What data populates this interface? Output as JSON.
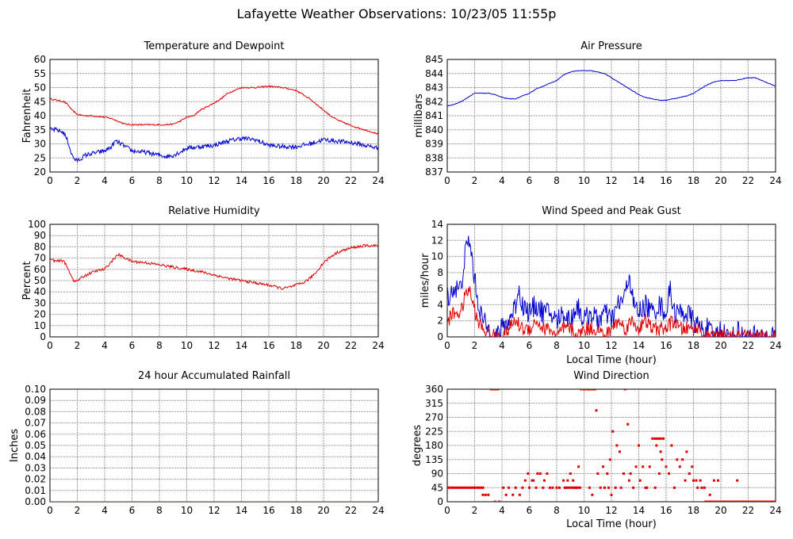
{
  "page": {
    "title": "Lafayette Weather Observations: 10/23/05 11:55p"
  },
  "colors": {
    "red": "#e00000",
    "blue": "#0000d0",
    "grid": "#808080"
  },
  "chart_data": [
    {
      "id": "temp",
      "type": "line",
      "title": "Temperature and Dewpoint",
      "xlabel": "",
      "ylabel": "Fahrenheit",
      "xlim": [
        0,
        24
      ],
      "ylim": [
        20,
        60
      ],
      "xticks": [
        0,
        2,
        4,
        6,
        8,
        10,
        12,
        14,
        16,
        18,
        20,
        22,
        24
      ],
      "yticks": [
        "20",
        "25",
        "30",
        "35",
        "40",
        "45",
        "50",
        "55",
        "60"
      ],
      "grid": true,
      "series": [
        {
          "color": "#e00000",
          "noise": 0.25,
          "x": [
            0,
            0.5,
            1,
            1.3,
            1.6,
            2,
            2.5,
            3,
            4,
            4.5,
            5,
            5.5,
            6,
            7,
            8,
            8.5,
            9,
            9.5,
            10,
            10.5,
            11,
            12,
            12.5,
            13,
            14,
            15,
            16,
            17,
            18,
            19,
            20,
            20.5,
            21,
            21.5,
            22,
            23,
            24
          ],
          "y": [
            46,
            45.5,
            45,
            44,
            42,
            40.5,
            40,
            40,
            39.5,
            39,
            38,
            37,
            36.8,
            36.8,
            36.8,
            36.8,
            37,
            38,
            39.5,
            40,
            42,
            44.5,
            46,
            48,
            50,
            50,
            50.5,
            50,
            49,
            46,
            42,
            40,
            38.5,
            37.5,
            36.5,
            35,
            33.5
          ]
        },
        {
          "color": "#0000d0",
          "noise": 0.8,
          "x": [
            0,
            0.5,
            1,
            1.3,
            1.6,
            1.9,
            2.2,
            2.6,
            3,
            3.5,
            4,
            4.5,
            4.8,
            5.2,
            6,
            7,
            8,
            8.5,
            9,
            9.5,
            10,
            11,
            12,
            13,
            14,
            15,
            16,
            17,
            18,
            19,
            20,
            21,
            22,
            23,
            24
          ],
          "y": [
            35,
            35,
            34,
            31,
            26,
            24,
            24.5,
            26,
            26.5,
            27,
            27.5,
            29,
            31,
            30,
            27.5,
            27,
            26,
            25.5,
            26,
            27,
            28.5,
            29,
            29.5,
            31,
            32,
            31.5,
            29.5,
            29,
            29,
            30,
            31.5,
            31,
            30.5,
            29.5,
            28.5
          ]
        }
      ]
    },
    {
      "id": "pressure",
      "type": "line",
      "title": "Air Pressure",
      "xlabel": "",
      "ylabel": "millibars",
      "xlim": [
        0,
        24
      ],
      "ylim": [
        837,
        845
      ],
      "xticks": [
        0,
        2,
        4,
        6,
        8,
        10,
        12,
        14,
        16,
        18,
        20,
        22,
        24
      ],
      "yticks": [
        "837",
        "838",
        "839",
        "840",
        "841",
        "842",
        "843",
        "844",
        "845"
      ],
      "grid": true,
      "series": [
        {
          "color": "#0000d0",
          "noise": 0.02,
          "x": [
            0,
            0.5,
            1,
            1.5,
            2,
            2.5,
            3,
            3.5,
            4,
            4.5,
            5,
            5.5,
            6,
            6.5,
            7,
            7.5,
            8,
            8.5,
            9,
            9.5,
            10,
            10.5,
            11,
            11.5,
            12,
            12.5,
            13,
            13.5,
            14,
            14.5,
            15,
            15.5,
            16,
            16.5,
            17,
            17.5,
            18,
            18.5,
            19,
            19.5,
            20,
            20.5,
            21,
            21.5,
            22,
            22.5,
            23,
            23.5,
            24
          ],
          "y": [
            841.7,
            841.8,
            842,
            842.3,
            842.6,
            842.6,
            842.6,
            842.5,
            842.3,
            842.2,
            842.2,
            842.4,
            842.6,
            842.9,
            843.1,
            843.3,
            843.5,
            843.9,
            844.1,
            844.2,
            844.2,
            844.2,
            844.1,
            844,
            843.7,
            843.4,
            843.1,
            842.8,
            842.5,
            842.3,
            842.2,
            842.1,
            842.1,
            842.2,
            842.3,
            842.4,
            842.6,
            842.9,
            843.2,
            843.4,
            843.5,
            843.5,
            843.5,
            843.6,
            843.7,
            843.7,
            843.5,
            843.3,
            843.1
          ]
        }
      ]
    },
    {
      "id": "humidity",
      "type": "line",
      "title": "Relative Humidity",
      "xlabel": "",
      "ylabel": "Percent",
      "xlim": [
        0,
        24
      ],
      "ylim": [
        0,
        100
      ],
      "xticks": [
        0,
        2,
        4,
        6,
        8,
        10,
        12,
        14,
        16,
        18,
        20,
        22,
        24
      ],
      "yticks": [
        "0",
        "10",
        "20",
        "30",
        "40",
        "50",
        "60",
        "70",
        "80",
        "90",
        "100"
      ],
      "grid": true,
      "series": [
        {
          "color": "#e00000",
          "noise": 1.2,
          "x": [
            0,
            0.5,
            1,
            1.2,
            1.5,
            1.8,
            2,
            2.5,
            3,
            3.5,
            4,
            4.5,
            4.8,
            5,
            5.5,
            6,
            7,
            8,
            9,
            10,
            11,
            12,
            13,
            14,
            15,
            16,
            17,
            17.5,
            18,
            18.5,
            19,
            19.5,
            20,
            20.5,
            21,
            22,
            23,
            23.5,
            24
          ],
          "y": [
            69,
            67,
            68,
            63,
            56,
            49,
            50,
            54,
            57,
            59,
            60,
            67,
            71,
            73,
            70,
            67,
            66,
            64,
            62,
            60,
            58,
            55,
            52,
            50,
            48,
            46,
            43,
            44,
            46,
            48,
            52,
            58,
            66,
            71,
            75,
            79,
            81,
            81,
            81
          ]
        }
      ]
    },
    {
      "id": "wind",
      "type": "line",
      "title": "Wind Speed and Peak Gust",
      "xlabel": "Local Time (hour)",
      "ylabel": "miles/hour",
      "xlim": [
        0,
        24
      ],
      "ylim": [
        0,
        14
      ],
      "xticks": [
        0,
        2,
        4,
        6,
        8,
        10,
        12,
        14,
        16,
        18,
        20,
        22,
        24
      ],
      "yticks": [
        "0",
        "2",
        "4",
        "6",
        "8",
        "10",
        "12",
        "14"
      ],
      "grid": true,
      "series": [
        {
          "color": "#0000d0",
          "noise": 1.4,
          "x": [
            0,
            0.5,
            1,
            1.2,
            1.4,
            1.6,
            1.8,
            2,
            2.3,
            2.6,
            3,
            3.5,
            4,
            4.5,
            5,
            5.2,
            5.5,
            6,
            6.5,
            7,
            7.5,
            8,
            8.5,
            9,
            9.5,
            10,
            10.5,
            11,
            11.5,
            12,
            12.5,
            13,
            13.3,
            13.6,
            14,
            14.5,
            15,
            15.5,
            16,
            16.3,
            16.6,
            17,
            17.5,
            18,
            18.5,
            19,
            19.5,
            20,
            20.5,
            21,
            21.2,
            21.5,
            22,
            23,
            24
          ],
          "y": [
            5,
            6,
            6,
            9,
            11,
            12,
            10,
            7,
            4,
            2,
            1,
            0,
            1,
            2,
            4,
            6,
            4,
            3,
            4,
            3,
            3,
            2,
            3,
            2,
            4,
            2,
            3,
            2,
            3,
            2,
            4,
            5,
            8,
            4,
            3,
            4,
            3,
            4,
            3,
            6,
            3,
            3,
            3,
            2,
            1,
            1,
            0,
            1,
            0,
            0,
            1,
            0,
            0,
            0,
            0
          ]
        },
        {
          "color": "#e00000",
          "noise": 0.9,
          "x": [
            0,
            0.5,
            1,
            1.3,
            1.6,
            1.9,
            2.2,
            2.6,
            3,
            3.5,
            4,
            4.5,
            5,
            5.5,
            6,
            6.5,
            7,
            7.5,
            8,
            8.5,
            9,
            9.5,
            10,
            10.5,
            11,
            11.5,
            12,
            12.5,
            13,
            13.5,
            14,
            14.5,
            15,
            15.5,
            16,
            16.5,
            17,
            17.5,
            18,
            18.5,
            18.8,
            19,
            20,
            21,
            22,
            23,
            24
          ],
          "y": [
            2,
            3,
            3,
            5,
            6,
            4,
            2,
            1,
            0.5,
            0,
            0,
            1,
            2,
            1,
            1,
            2,
            1,
            1,
            0,
            1,
            1,
            0,
            1,
            1,
            1,
            0,
            1,
            2,
            1,
            2,
            1,
            2,
            1,
            1,
            1,
            2,
            1,
            1,
            1,
            1,
            0,
            0,
            0,
            0,
            0,
            0,
            0
          ]
        }
      ]
    },
    {
      "id": "rain",
      "type": "line",
      "title": "24 hour Accumulated Rainfall",
      "xlabel": "",
      "ylabel": "Inches",
      "xlim": [
        0,
        24
      ],
      "ylim": [
        0,
        0.1
      ],
      "xticks": [
        0,
        2,
        4,
        6,
        8,
        10,
        12,
        14,
        16,
        18,
        20,
        22,
        24
      ],
      "yticks": [
        "0.00",
        "0.01",
        "0.02",
        "0.03",
        "0.04",
        "0.05",
        "0.06",
        "0.07",
        "0.08",
        "0.09",
        "0.10"
      ],
      "grid": true,
      "series": [
        {
          "color": "#e00000",
          "noise": 0,
          "x": [
            0,
            24
          ],
          "y": [
            0,
            0
          ]
        }
      ]
    },
    {
      "id": "winddir",
      "type": "scatter",
      "title": "Wind Direction",
      "xlabel": "Local Time (hour)",
      "ylabel": "degrees",
      "xlim": [
        0,
        24
      ],
      "ylim": [
        0,
        360
      ],
      "xticks": [
        0,
        2,
        4,
        6,
        8,
        10,
        12,
        14,
        16,
        18,
        20,
        22,
        24
      ],
      "yticks": [
        "0",
        "45",
        "90",
        "135",
        "180",
        "225",
        "270",
        "315",
        "360"
      ],
      "grid": true,
      "series": [
        {
          "color": "#e00000",
          "x": [
            2.6,
            2.8,
            3.0,
            3.2,
            3.3,
            3.5,
            3.6,
            3.8,
            4.1,
            4.3,
            4.5,
            4.8,
            5.0,
            5.3,
            5.5,
            5.7,
            5.9,
            6.0,
            6.2,
            6.3,
            6.5,
            6.6,
            6.8,
            7.0,
            7.1,
            7.3,
            7.5,
            7.7,
            8.0,
            8.2,
            8.5,
            8.6,
            8.8,
            9.0,
            9.2,
            9.4,
            9.6,
            9.8,
            10.0,
            10.2,
            10.4,
            10.6,
            10.7,
            10.9,
            11.0,
            11.2,
            11.4,
            11.5,
            11.7,
            11.8,
            11.9,
            12.0,
            12.1,
            12.3,
            12.4,
            12.6,
            12.7,
            12.9,
            13.0,
            13.2,
            13.3,
            13.4,
            13.6,
            13.8,
            14.0,
            14.1,
            14.3,
            14.5,
            14.6,
            14.8,
            15.0,
            15.2,
            15.3,
            15.5,
            15.6,
            15.7,
            15.8,
            16.0,
            16.2,
            16.4,
            16.6,
            16.8,
            17.0,
            17.2,
            17.4,
            17.5,
            17.7,
            17.9,
            18.0,
            18.2,
            18.3,
            18.5,
            18.6,
            18.8,
            19.2,
            19.5,
            19.8,
            21.2
          ],
          "y": [
            22,
            22,
            22,
            360,
            360,
            0,
            360,
            0,
            45,
            22,
            45,
            22,
            45,
            22,
            45,
            68,
            90,
            45,
            68,
            68,
            45,
            90,
            90,
            45,
            68,
            90,
            45,
            45,
            45,
            45,
            68,
            45,
            68,
            90,
            68,
            45,
            112,
            360,
            360,
            360,
            45,
            22,
            360,
            292,
            90,
            45,
            112,
            45,
            90,
            45,
            135,
            22,
            225,
            45,
            180,
            160,
            45,
            90,
            360,
            248,
            68,
            90,
            45,
            112,
            180,
            68,
            112,
            45,
            45,
            112,
            202,
            45,
            180,
            90,
            160,
            135,
            202,
            112,
            90,
            180,
            45,
            135,
            112,
            135,
            68,
            160,
            90,
            112,
            68,
            68,
            45,
            68,
            45,
            45,
            22,
            68,
            68,
            68
          ]
        }
      ],
      "lines": [
        {
          "color": "#e00000",
          "x": [
            0,
            2.7
          ],
          "y": [
            45,
            45
          ]
        },
        {
          "color": "#e00000",
          "x": [
            18.8,
            24
          ],
          "y": [
            0,
            0
          ]
        },
        {
          "color": "#e00000",
          "x": [
            3.2,
            3.8
          ],
          "y": [
            360,
            360
          ]
        },
        {
          "color": "#e00000",
          "x": [
            10.0,
            10.9
          ],
          "y": [
            360,
            360
          ]
        },
        {
          "color": "#e00000",
          "x": [
            8.6,
            9.8
          ],
          "y": [
            45,
            45
          ]
        },
        {
          "color": "#e00000",
          "x": [
            15.1,
            15.7
          ],
          "y": [
            202,
            202
          ]
        }
      ]
    }
  ]
}
